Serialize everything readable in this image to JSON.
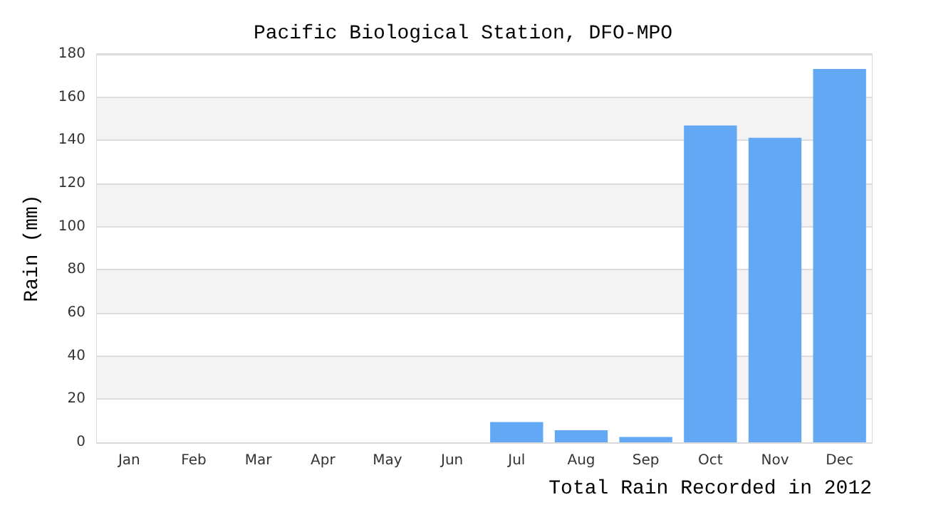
{
  "chart_data": {
    "type": "bar",
    "title": "Pacific Biological Station, DFO-MPO",
    "xlabel": "Total Rain Recorded in 2012",
    "ylabel": "Rain (mm)",
    "categories": [
      "Jan",
      "Feb",
      "Mar",
      "Apr",
      "May",
      "Jun",
      "Jul",
      "Aug",
      "Sep",
      "Oct",
      "Nov",
      "Dec"
    ],
    "values": [
      0,
      0,
      0,
      0,
      0,
      0,
      9.4,
      5.6,
      2.5,
      146.9,
      141.2,
      173.1
    ],
    "color": "#62a8f4",
    "ylim": [
      0,
      180
    ],
    "yticks": [
      0,
      20,
      40,
      60,
      80,
      100,
      120,
      140,
      160,
      180
    ],
    "grid": "y"
  }
}
